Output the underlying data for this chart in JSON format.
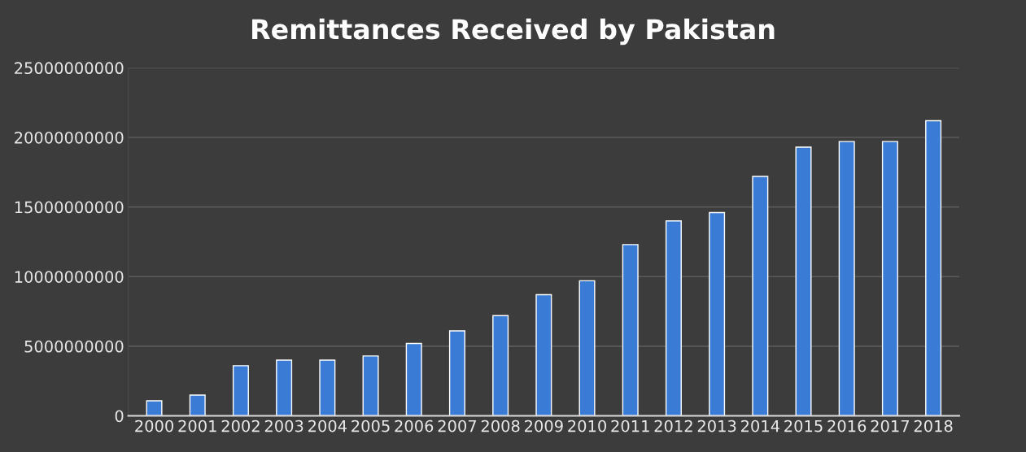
{
  "chart_data": {
    "type": "bar",
    "title": "Remittances Received by Pakistan",
    "categories": [
      "2000",
      "2001",
      "2002",
      "2003",
      "2004",
      "2005",
      "2006",
      "2007",
      "2008",
      "2009",
      "2010",
      "2011",
      "2012",
      "2013",
      "2014",
      "2015",
      "2016",
      "2017",
      "2018"
    ],
    "values": [
      1080000000,
      1490000000,
      3600000000,
      4000000000,
      4000000000,
      4300000000,
      5200000000,
      6100000000,
      7200000000,
      8700000000,
      9700000000,
      12300000000,
      14000000000,
      14600000000,
      17200000000,
      19300000000,
      19700000000,
      19700000000,
      21200000000
    ],
    "color": "#3a7bd5",
    "ylim": [
      0,
      25000000000
    ],
    "yticks": [
      0,
      5000000000,
      10000000000,
      15000000000,
      20000000000,
      25000000000
    ],
    "grid": "y"
  }
}
